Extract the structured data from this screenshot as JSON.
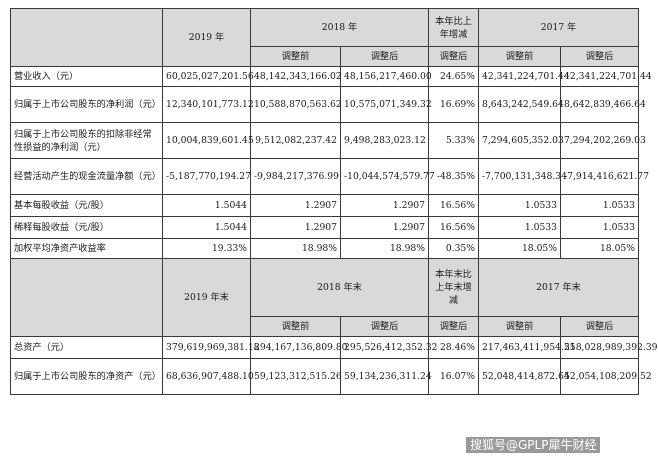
{
  "header1": {
    "year_2019": "2019 年",
    "year_2018": "2018 年",
    "yoy": "本年比上年增减",
    "year_2017": "2017 年",
    "before_adj": "调整前",
    "after_adj": "调整后",
    "after_adj_yoy": "调整后"
  },
  "rows1": [
    {
      "label": "营业收入（元）",
      "v2019": "60,025,027,201.56",
      "v2018a": "48,142,343,166.02",
      "v2018b": "48,156,217,460.00",
      "yoy": "24.65%",
      "v2017a": "42,341,224,701.44",
      "v2017b": "42,341,224,701.44"
    },
    {
      "label": "归属于上市公司股东的净利润（元）",
      "v2019": "12,340,101,773.12",
      "v2018a": "10,588,870,563.62",
      "v2018b": "10,575,071,349.32",
      "yoy": "16.69%",
      "v2017a": "8,643,242,549.64",
      "v2017b": "8,642,839,466.64"
    },
    {
      "label": "归属于上市公司股东的扣除非经常性损益的净利润（元）",
      "v2019": "10,004,839,601.45",
      "v2018a": "9,512,082,237.42",
      "v2018b": "9,498,283,023.12",
      "yoy": "5.33%",
      "v2017a": "7,294,605,352.03",
      "v2017b": "7,294,202,269.03"
    },
    {
      "label": "经营活动产生的现金流量净额（元）",
      "v2019": "-5,187,770,194.27",
      "v2018a": "-9,984,217,376.99",
      "v2018b": "-10,044,574,579.77",
      "yoy": "-48.35%",
      "v2017a": "-7,700,131,348.34",
      "v2017b": "-7,914,416,621.77"
    },
    {
      "label": "基本每股收益（元/股）",
      "v2019": "1.5044",
      "v2018a": "1.2907",
      "v2018b": "1.2907",
      "yoy": "16.56%",
      "v2017a": "1.0533",
      "v2017b": "1.0533"
    },
    {
      "label": "稀释每股收益（元/股）",
      "v2019": "1.5044",
      "v2018a": "1.2907",
      "v2018b": "1.2907",
      "yoy": "16.56%",
      "v2017a": "1.0533",
      "v2017b": "1.0533"
    },
    {
      "label": "加权平均净资产收益率",
      "v2019": "19.33%",
      "v2018a": "18.98%",
      "v2018b": "18.98%",
      "yoy": "0.35%",
      "v2017a": "18.05%",
      "v2017b": "18.05%"
    }
  ],
  "header2": {
    "year_2019": "2019 年末",
    "year_2018": "2018 年末",
    "yoy": "本年末比上年末增减",
    "year_2017": "2017 年末",
    "before_adj": "调整前",
    "after_adj": "调整后",
    "after_adj_yoy": "调整后"
  },
  "rows2": [
    {
      "label": "总资产（元）",
      "v2019": "379,619,969,381.18",
      "v2018a": "294,167,136,809.80",
      "v2018b": "295,526,412,352.32",
      "yoy": "28.46%",
      "v2017a": "217,463,411,954.55",
      "v2017b": "218,028,989,392.39"
    },
    {
      "label": "归属于上市公司股东的净资产（元）",
      "v2019": "68,636,907,488.10",
      "v2018a": "59,123,312,515.26",
      "v2018b": "59,134,236,311.24",
      "yoy": "16.07%",
      "v2017a": "52,048,414,872.64",
      "v2017b": "52,054,108,209.52"
    }
  ],
  "watermark": "搜狐号@GPLP犀牛财经"
}
